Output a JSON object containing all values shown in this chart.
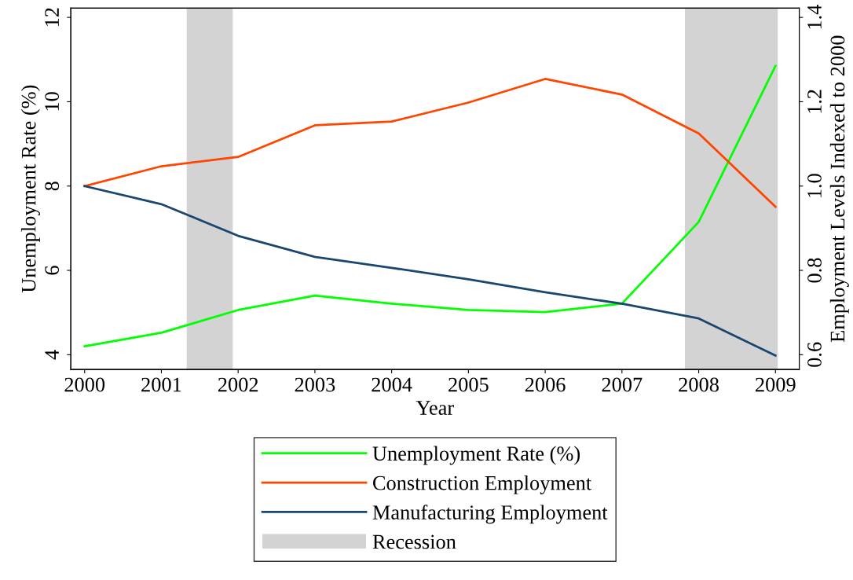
{
  "chart_data": {
    "type": "line",
    "xlabel": "Year",
    "ylabel": "Unemployment Rate (%)",
    "y2label": "Employment Levels Indexed to 2000",
    "x": [
      2000,
      2001,
      2002,
      2003,
      2004,
      2005,
      2006,
      2007,
      2008,
      2009
    ],
    "series": [
      {
        "name": "Unemployment Rate (%)",
        "color": "#00ff00",
        "values": [
          4.2,
          4.52,
          5.06,
          5.4,
          5.21,
          5.06,
          5.01,
          5.21,
          7.15,
          10.85
        ]
      },
      {
        "name": "Construction Employment",
        "color": "#ff4500",
        "axis": "y2",
        "values": [
          1.0,
          1.047,
          1.069,
          1.144,
          1.153,
          1.198,
          1.254,
          1.217,
          1.125,
          0.951
        ]
      },
      {
        "name": "Manufacturing Employment",
        "color": "#1a476f",
        "axis": "y2",
        "values": [
          1.0,
          0.957,
          0.882,
          0.832,
          0.806,
          0.779,
          0.748,
          0.721,
          0.686,
          0.598
        ]
      }
    ],
    "bands": [
      {
        "axis": "x",
        "from": 2001.33,
        "to": 2001.93,
        "label": "Recession",
        "color": "#d3d3d3"
      },
      {
        "axis": "x",
        "from": 2007.82,
        "to": 2009.03,
        "color": "#d3d3d3"
      }
    ],
    "xlim": [
      1999.82,
      2009.31
    ],
    "xticks": [
      2000,
      2001,
      2002,
      2003,
      2004,
      2005,
      2006,
      2007,
      2008,
      2009
    ],
    "ylim": [
      3.65,
      12.22
    ],
    "yticks": [
      4,
      6,
      8,
      10,
      12
    ],
    "y2lim": [
      0.565,
      1.422
    ],
    "y2ticks": [
      {
        "value": 0.6,
        "label": "0.6"
      },
      {
        "value": 0.8,
        "label": "0.8"
      },
      {
        "value": 1.0,
        "label": "1.0"
      },
      {
        "value": 1.2,
        "label": "1.2"
      },
      {
        "value": 1.4,
        "label": "1.4"
      }
    ],
    "grid": false,
    "legend": "bottom",
    "marker": "none",
    "line_style": "solid"
  }
}
